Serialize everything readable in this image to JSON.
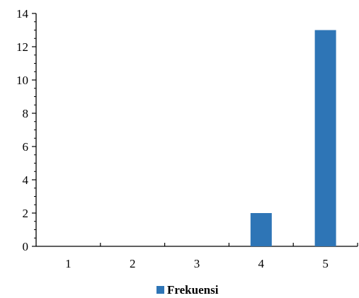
{
  "chart_data": {
    "type": "bar",
    "categories": [
      "1",
      "2",
      "3",
      "4",
      "5"
    ],
    "series": [
      {
        "name": "Frekuensi",
        "values": [
          0,
          0,
          0,
          2,
          13
        ],
        "color": "#2e75b6"
      }
    ],
    "ylim": [
      0,
      14
    ],
    "y_major_ticks": [
      0,
      2,
      4,
      6,
      8,
      10,
      12,
      14
    ],
    "y_minor_step": 0.5,
    "grid": false,
    "legend_position": "bottom"
  }
}
